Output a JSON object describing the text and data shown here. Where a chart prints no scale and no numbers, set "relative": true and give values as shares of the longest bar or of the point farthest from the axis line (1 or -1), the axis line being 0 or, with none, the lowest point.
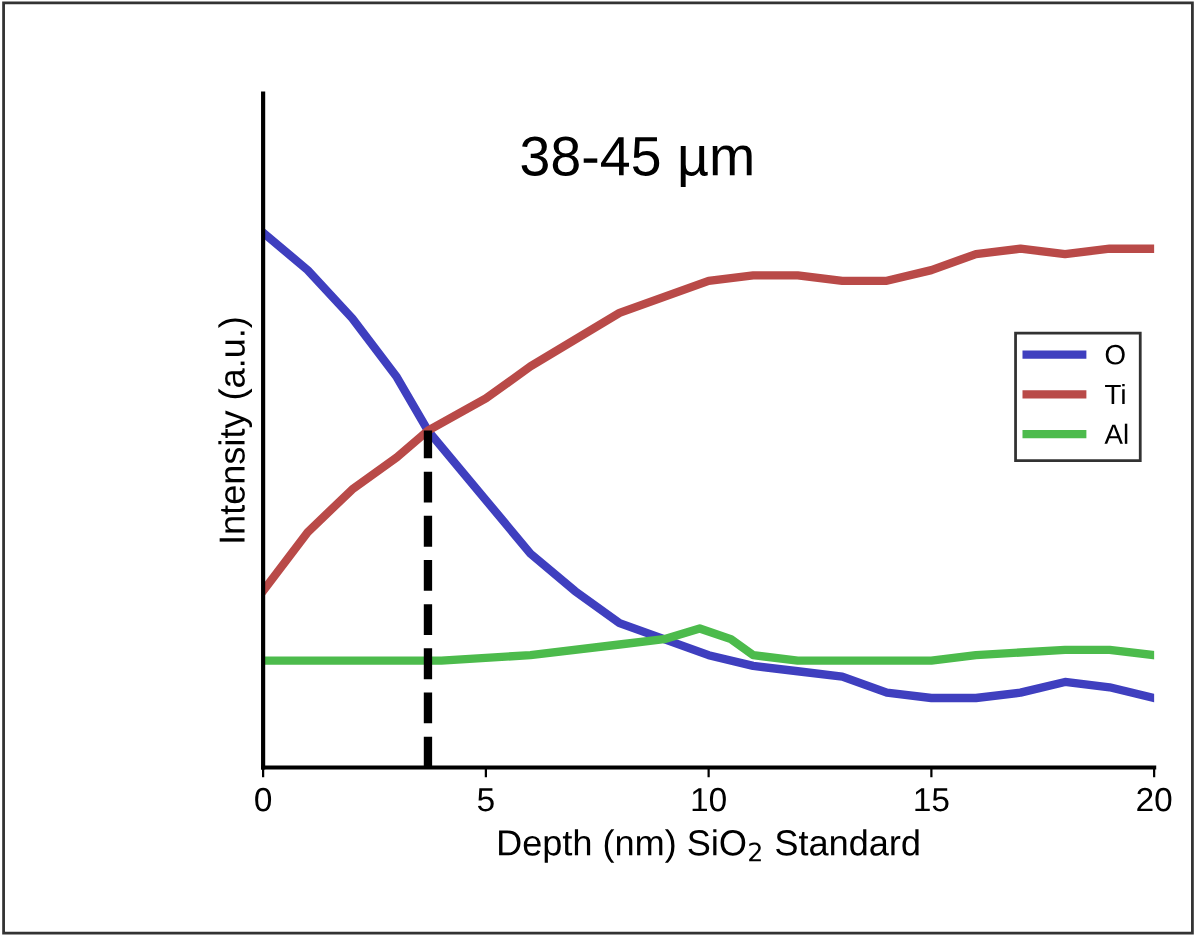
{
  "chart_data": {
    "type": "line",
    "title": "38-45 µm",
    "xlabel": "Depth (nm) SiO$_{2}$ Standard",
    "ylabel": "Intensity (a.u.)",
    "relative": true,
    "xlim": [
      0,
      20
    ],
    "xticks": [
      0,
      5,
      10,
      15,
      20
    ],
    "grid": false,
    "legend": "right",
    "marker": "none",
    "series": [
      {
        "name": "O",
        "color": "#3f3fbf",
        "x": [
          0,
          1,
          2,
          3,
          3.7,
          5,
          6,
          7,
          8,
          9,
          10,
          11,
          12,
          13,
          14,
          15,
          16,
          17,
          18,
          19,
          20
        ],
        "values": [
          1.0,
          0.93,
          0.84,
          0.73,
          0.63,
          0.5,
          0.4,
          0.33,
          0.27,
          0.24,
          0.21,
          0.19,
          0.18,
          0.17,
          0.14,
          0.13,
          0.13,
          0.14,
          0.16,
          0.15,
          0.13
        ]
      },
      {
        "name": "Ti",
        "color": "#b94a48",
        "x": [
          0,
          1,
          2,
          3,
          3.7,
          5,
          6,
          7,
          8,
          9,
          10,
          11,
          12,
          13,
          14,
          15,
          16,
          17,
          18,
          19,
          20
        ],
        "values": [
          0.33,
          0.44,
          0.52,
          0.58,
          0.63,
          0.69,
          0.75,
          0.8,
          0.85,
          0.88,
          0.91,
          0.92,
          0.92,
          0.91,
          0.91,
          0.93,
          0.96,
          0.97,
          0.96,
          0.97,
          0.97
        ]
      },
      {
        "name": "Al",
        "color": "#4cbb4c",
        "x": [
          0,
          2,
          4,
          6,
          8,
          9,
          9.8,
          10.5,
          11,
          12,
          14,
          15,
          16,
          18,
          19,
          20
        ],
        "values": [
          0.2,
          0.2,
          0.2,
          0.21,
          0.23,
          0.24,
          0.26,
          0.24,
          0.21,
          0.2,
          0.2,
          0.2,
          0.21,
          0.22,
          0.22,
          0.21
        ]
      },
      {
        "color": "#000000",
        "line_style": "dashed",
        "x": [
          3.7,
          3.7
        ],
        "values": [
          0,
          0.63
        ]
      }
    ]
  }
}
